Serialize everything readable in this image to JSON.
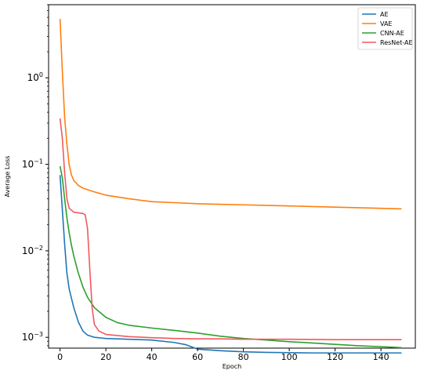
{
  "chart_data": {
    "type": "line",
    "title": "",
    "xlabel": "Epoch",
    "ylabel": "Average Loss",
    "xlim": [
      -5,
      155
    ],
    "ylim": [
      0.00075,
      7.0
    ],
    "yscale": "log",
    "xticks": [
      0,
      20,
      40,
      60,
      80,
      100,
      120,
      140
    ],
    "xtick_labels": [
      "0",
      "20",
      "40",
      "60",
      "80",
      "100",
      "120",
      "140"
    ],
    "yticks": [
      0.001,
      0.01,
      0.1,
      1.0
    ],
    "grid": false,
    "legend_position": "top-right",
    "series": [
      {
        "name": "AE",
        "color": "#1f77b4",
        "points": [
          [
            0,
            0.075
          ],
          [
            1,
            0.03
          ],
          [
            2,
            0.012
          ],
          [
            3,
            0.0055
          ],
          [
            4,
            0.0036
          ],
          [
            6,
            0.0022
          ],
          [
            8,
            0.0015
          ],
          [
            10,
            0.00118
          ],
          [
            12,
            0.00106
          ],
          [
            15,
            0.001
          ],
          [
            20,
            0.00097
          ],
          [
            30,
            0.00095
          ],
          [
            40,
            0.00093
          ],
          [
            50,
            0.00087
          ],
          [
            55,
            0.00082
          ],
          [
            60,
            0.00073
          ],
          [
            70,
            0.0007
          ],
          [
            80,
            0.00068
          ],
          [
            90,
            0.00067
          ],
          [
            100,
            0.000665
          ],
          [
            110,
            0.00066
          ],
          [
            120,
            0.00066
          ],
          [
            130,
            0.00066
          ],
          [
            140,
            0.00066
          ],
          [
            149,
            0.00066
          ]
        ]
      },
      {
        "name": "VAE",
        "color": "#ff7f0e",
        "points": [
          [
            0,
            4.8
          ],
          [
            1,
            1.2
          ],
          [
            2,
            0.35
          ],
          [
            3,
            0.17
          ],
          [
            4,
            0.098
          ],
          [
            5,
            0.075
          ],
          [
            6,
            0.065
          ],
          [
            8,
            0.057
          ],
          [
            10,
            0.053
          ],
          [
            15,
            0.048
          ],
          [
            20,
            0.044
          ],
          [
            30,
            0.04
          ],
          [
            40,
            0.037
          ],
          [
            50,
            0.036
          ],
          [
            60,
            0.035
          ],
          [
            70,
            0.0345
          ],
          [
            80,
            0.034
          ],
          [
            90,
            0.0335
          ],
          [
            100,
            0.033
          ],
          [
            110,
            0.0325
          ],
          [
            120,
            0.032
          ],
          [
            130,
            0.0315
          ],
          [
            140,
            0.031
          ],
          [
            149,
            0.0305
          ]
        ]
      },
      {
        "name": "CNN-AE",
        "color": "#2ca02c",
        "points": [
          [
            0,
            0.095
          ],
          [
            1,
            0.07
          ],
          [
            2,
            0.04
          ],
          [
            3,
            0.024
          ],
          [
            4,
            0.016
          ],
          [
            5,
            0.0115
          ],
          [
            6,
            0.0087
          ],
          [
            8,
            0.0055
          ],
          [
            10,
            0.0038
          ],
          [
            12,
            0.0029
          ],
          [
            15,
            0.0022
          ],
          [
            20,
            0.0017
          ],
          [
            25,
            0.00148
          ],
          [
            30,
            0.00138
          ],
          [
            40,
            0.00128
          ],
          [
            50,
            0.0012
          ],
          [
            60,
            0.00112
          ],
          [
            70,
            0.00103
          ],
          [
            80,
            0.00097
          ],
          [
            90,
            0.00093
          ],
          [
            100,
            0.00089
          ],
          [
            110,
            0.00086
          ],
          [
            120,
            0.00083
          ],
          [
            130,
            0.0008
          ],
          [
            140,
            0.00078
          ],
          [
            149,
            0.00076
          ]
        ]
      },
      {
        "name": "ResNet-AE",
        "color": "#f0595e",
        "points": [
          [
            0,
            0.34
          ],
          [
            1,
            0.2
          ],
          [
            2,
            0.08
          ],
          [
            3,
            0.04
          ],
          [
            4,
            0.031
          ],
          [
            6,
            0.028
          ],
          [
            8,
            0.0275
          ],
          [
            10,
            0.027
          ],
          [
            11,
            0.026
          ],
          [
            12,
            0.018
          ],
          [
            13,
            0.006
          ],
          [
            14,
            0.0022
          ],
          [
            15,
            0.0014
          ],
          [
            17,
            0.00118
          ],
          [
            20,
            0.00108
          ],
          [
            30,
            0.00102
          ],
          [
            40,
            0.00099
          ],
          [
            50,
            0.00097
          ],
          [
            60,
            0.00096
          ],
          [
            70,
            0.00096
          ],
          [
            80,
            0.00095
          ],
          [
            100,
            0.00095
          ],
          [
            120,
            0.00094
          ],
          [
            140,
            0.00094
          ],
          [
            149,
            0.00094
          ]
        ]
      }
    ]
  }
}
